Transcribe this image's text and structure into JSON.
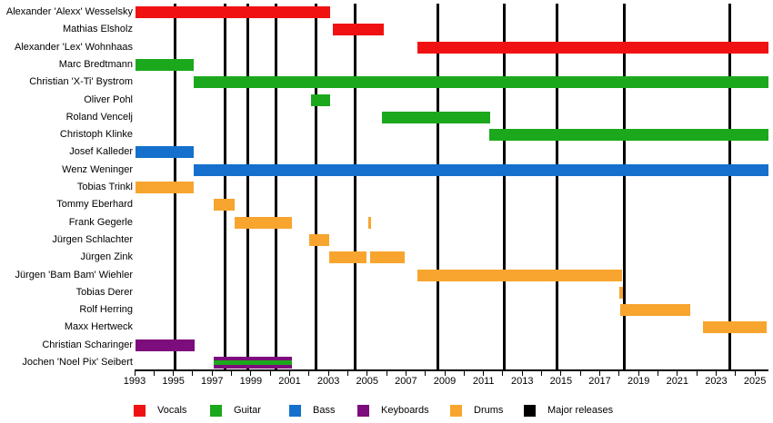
{
  "chart_data": {
    "type": "bar",
    "subtype": "gantt-band-membership-timeline",
    "x_axis": {
      "min": 1993,
      "max": 2025.7,
      "tick_years_labeled": [
        1993,
        1995,
        1997,
        1999,
        2001,
        2003,
        2005,
        2007,
        2009,
        2011,
        2013,
        2015,
        2017,
        2019,
        2021,
        2023,
        2025
      ],
      "minor_tick_step": 1
    },
    "colors": {
      "vocals": "#f01212",
      "guitar": "#1ca81c",
      "bass": "#1470cc",
      "keyboards": "#7d0c7d",
      "drums": "#f7a52e",
      "releases": "#000000"
    },
    "legend": [
      {
        "label": "Vocals",
        "role": "vocals"
      },
      {
        "label": "Guitar",
        "role": "guitar"
      },
      {
        "label": "Bass",
        "role": "bass"
      },
      {
        "label": "Keyboards",
        "role": "keyboards"
      },
      {
        "label": "Drums",
        "role": "drums"
      },
      {
        "label": "Major releases",
        "role": "releases"
      }
    ],
    "members": [
      {
        "name": "Alexander 'Alexx' Wesselsky",
        "segments": [
          {
            "role": "vocals",
            "start": 1993.05,
            "end": 2003.1
          }
        ]
      },
      {
        "name": "Mathias Elsholz",
        "segments": [
          {
            "role": "vocals",
            "start": 2003.25,
            "end": 2005.85
          }
        ]
      },
      {
        "name": "Alexander 'Lex' Wohnhaas",
        "segments": [
          {
            "role": "vocals",
            "start": 2007.6,
            "end": 2025.7
          }
        ]
      },
      {
        "name": "Marc Bredtmann",
        "segments": [
          {
            "role": "guitar",
            "start": 1993.05,
            "end": 1996.05
          }
        ]
      },
      {
        "name": "Christian 'X-Ti' Bystrom",
        "segments": [
          {
            "role": "guitar",
            "start": 1996.05,
            "end": 2025.7
          }
        ]
      },
      {
        "name": "Oliver Pohl",
        "segments": [
          {
            "role": "guitar",
            "start": 2002.1,
            "end": 2003.1
          }
        ]
      },
      {
        "name": "Roland Vencelj",
        "segments": [
          {
            "role": "guitar",
            "start": 2005.75,
            "end": 2011.35
          }
        ]
      },
      {
        "name": "Christoph Klinke",
        "segments": [
          {
            "role": "guitar",
            "start": 2011.3,
            "end": 2025.7
          }
        ]
      },
      {
        "name": "Josef Kalleder",
        "segments": [
          {
            "role": "bass",
            "start": 1993.05,
            "end": 1996.05
          }
        ]
      },
      {
        "name": "Wenz Weninger",
        "segments": [
          {
            "role": "bass",
            "start": 1996.05,
            "end": 2025.7
          }
        ]
      },
      {
        "name": "Tobias Trinkl",
        "segments": [
          {
            "role": "drums",
            "start": 1993.05,
            "end": 1996.05
          }
        ]
      },
      {
        "name": "Tommy Eberhard",
        "segments": [
          {
            "role": "drums",
            "start": 1997.1,
            "end": 1998.15
          }
        ]
      },
      {
        "name": "Frank Gegerle",
        "segments": [
          {
            "role": "drums",
            "start": 1998.15,
            "end": 2001.1
          },
          {
            "role": "drums",
            "start": 2005.05,
            "end": 2005.2
          }
        ]
      },
      {
        "name": "Jürgen Schlachter",
        "segments": [
          {
            "role": "drums",
            "start": 2002.0,
            "end": 2003.05
          }
        ]
      },
      {
        "name": "Jürgen Zink",
        "segments": [
          {
            "role": "drums",
            "start": 2003.05,
            "end": 2004.95
          },
          {
            "role": "drums",
            "start": 2005.15,
            "end": 2006.95
          }
        ]
      },
      {
        "name": "Jürgen 'Bam Bam' Wiehler",
        "segments": [
          {
            "role": "drums",
            "start": 2007.6,
            "end": 2018.15
          }
        ]
      },
      {
        "name": "Tobias Derer",
        "segments": [
          {
            "role": "drums",
            "start": 2018.0,
            "end": 2018.18
          }
        ]
      },
      {
        "name": "Rolf Herring",
        "segments": [
          {
            "role": "drums",
            "start": 2018.05,
            "end": 2021.65
          }
        ]
      },
      {
        "name": "Maxx Hertweck",
        "segments": [
          {
            "role": "drums",
            "start": 2022.3,
            "end": 2025.6
          }
        ]
      },
      {
        "name": "Christian Scharinger",
        "segments": [
          {
            "role": "keyboards",
            "start": 1993.05,
            "end": 1996.1
          }
        ]
      },
      {
        "name": "Jochen 'Noel Pix' Seibert",
        "segments": [
          {
            "role": "keyboards",
            "start": 1997.1,
            "end": 2001.1,
            "overlay_role": "guitar"
          }
        ]
      }
    ],
    "releases": {
      "label": "Major releases",
      "years": [
        1995.1,
        1997.65,
        1998.85,
        2000.3,
        2002.35,
        2004.4,
        2008.65,
        2012.05,
        2014.8,
        2018.25,
        2023.7
      ]
    }
  }
}
